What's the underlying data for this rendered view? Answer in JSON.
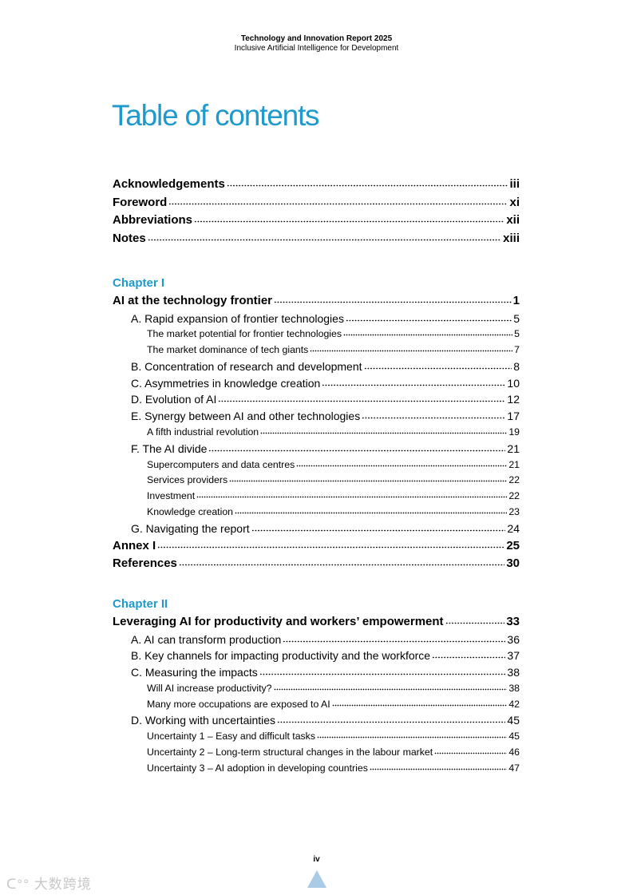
{
  "header": {
    "title": "Technology and Innovation Report 2025",
    "subtitle": "Inclusive Artificial Intelligence for Development"
  },
  "page_title": "Table of contents",
  "front_matter": [
    {
      "label": "Acknowledgements",
      "page": "iii",
      "level": 0
    },
    {
      "label": "Foreword",
      "page": "xi",
      "level": 0
    },
    {
      "label": "Abbreviations",
      "page": "xii",
      "level": 0
    },
    {
      "label": "Notes",
      "page": "xiii",
      "level": 0
    }
  ],
  "chapters": [
    {
      "heading": "Chapter I",
      "entries": [
        {
          "label": "AI at the technology frontier",
          "page": "1",
          "level": 0
        },
        {
          "label": "A. Rapid expansion of frontier technologies",
          "page": "5",
          "level": 1
        },
        {
          "label": "The market potential for frontier technologies",
          "page": "5",
          "level": 2
        },
        {
          "label": "The market dominance of tech giants",
          "page": "7",
          "level": 2
        },
        {
          "label": "B. Concentration of research and development",
          "page": "8",
          "level": 1
        },
        {
          "label": "C. Asymmetries in knowledge creation",
          "page": "10",
          "level": 1
        },
        {
          "label": "D. Evolution of AI",
          "page": "12",
          "level": 1
        },
        {
          "label": "E. Synergy between AI and other technologies",
          "page": "17",
          "level": 1
        },
        {
          "label": "A fifth industrial revolution",
          "page": "19",
          "level": 2
        },
        {
          "label": "F.  The AI divide",
          "page": "21",
          "level": 1
        },
        {
          "label": "Supercomputers and data centres",
          "page": "21",
          "level": 2
        },
        {
          "label": "Services providers",
          "page": "22",
          "level": 2
        },
        {
          "label": "Investment",
          "page": "22",
          "level": 2
        },
        {
          "label": "Knowledge creation",
          "page": "23",
          "level": 2
        },
        {
          "label": "G. Navigating the report",
          "page": "24",
          "level": 1
        },
        {
          "label": "Annex I",
          "page": "25",
          "level": 0
        },
        {
          "label": "References",
          "page": "30",
          "level": 0
        }
      ]
    },
    {
      "heading": "Chapter II",
      "entries": [
        {
          "label": "Leveraging AI for productivity and workers’ empowerment",
          "page": "33",
          "level": 0
        },
        {
          "label": "A. AI can transform production",
          "page": "36",
          "level": 1
        },
        {
          "label": "B. Key channels for impacting productivity and the workforce",
          "page": "37",
          "level": 1
        },
        {
          "label": "C. Measuring the impacts",
          "page": "38",
          "level": 1
        },
        {
          "label": "Will AI increase productivity?",
          "page": "38",
          "level": 2
        },
        {
          "label": "Many more occupations are exposed to AI",
          "page": "42",
          "level": 2
        },
        {
          "label": "D. Working with uncertainties",
          "page": "45",
          "level": 1
        },
        {
          "label": "Uncertainty 1 – Easy and difficult tasks",
          "page": "45",
          "level": 2
        },
        {
          "label": "Uncertainty 2 – Long-term structural changes in the labour market",
          "page": "46",
          "level": 2
        },
        {
          "label": "Uncertainty 3 – AI adoption in developing countries",
          "page": "47",
          "level": 2
        }
      ]
    }
  ],
  "page_number": "iv",
  "watermark": "大数跨境",
  "colors": {
    "accent": "#1f9acb"
  },
  "icons": {
    "scroll_top": "chevron-up-icon"
  }
}
